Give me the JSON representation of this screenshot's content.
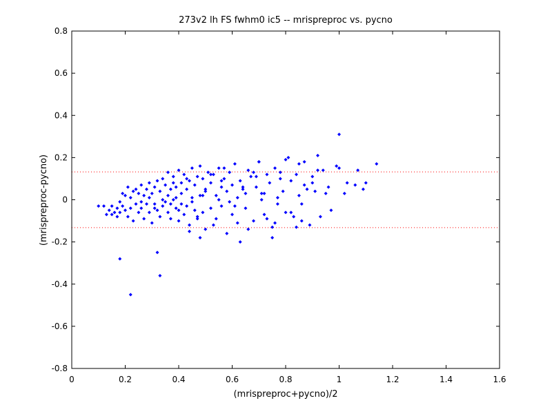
{
  "chart_data": {
    "type": "scatter",
    "title": "273v2 lh FS fwhm0 ic5 -- mrispreproc vs. pycno",
    "xlabel": "(mrispreproc+pycno)/2",
    "ylabel": "(mrispreproc-pycno)",
    "xlim": [
      0,
      1.6
    ],
    "ylim": [
      -0.8,
      0.8
    ],
    "xticks": [
      0,
      0.2,
      0.4,
      0.6,
      0.8,
      1,
      1.2,
      1.4,
      1.6
    ],
    "xtick_labels": [
      "0",
      "0.2",
      "0.4",
      "0.6",
      "0.8",
      "1",
      "1.2",
      "1.4",
      "1.6"
    ],
    "yticks": [
      -0.8,
      -0.6,
      -0.4,
      -0.2,
      0,
      0.2,
      0.4,
      0.6,
      0.8
    ],
    "ytick_labels": [
      "-0.8",
      "-0.6",
      "-0.4",
      "-0.2",
      "0",
      "0.2",
      "0.4",
      "0.6",
      "0.8"
    ],
    "grid": false,
    "marker_color": "#0000ff",
    "reference_lines": {
      "y": [
        0.132,
        -0.132
      ],
      "color": "#ff0000",
      "style": "dotted"
    },
    "series": [
      {
        "x": [
          0.1,
          0.12,
          0.13,
          0.14,
          0.15,
          0.15,
          0.16,
          0.17,
          0.17,
          0.18,
          0.18,
          0.19,
          0.19,
          0.2,
          0.2,
          0.21,
          0.21,
          0.22,
          0.22,
          0.23,
          0.23,
          0.24,
          0.24,
          0.25,
          0.25,
          0.26,
          0.26,
          0.27,
          0.27,
          0.28,
          0.28,
          0.29,
          0.29,
          0.3,
          0.3,
          0.31,
          0.31,
          0.32,
          0.32,
          0.33,
          0.33,
          0.34,
          0.34,
          0.35,
          0.35,
          0.36,
          0.36,
          0.37,
          0.37,
          0.38,
          0.38,
          0.39,
          0.39,
          0.4,
          0.4,
          0.41,
          0.41,
          0.42,
          0.42,
          0.43,
          0.43,
          0.44,
          0.44,
          0.45,
          0.45,
          0.46,
          0.46,
          0.47,
          0.47,
          0.48,
          0.48,
          0.49,
          0.49,
          0.5,
          0.5,
          0.51,
          0.52,
          0.52,
          0.53,
          0.54,
          0.54,
          0.55,
          0.56,
          0.56,
          0.57,
          0.58,
          0.58,
          0.59,
          0.6,
          0.6,
          0.61,
          0.62,
          0.62,
          0.63,
          0.64,
          0.65,
          0.66,
          0.67,
          0.68,
          0.69,
          0.7,
          0.71,
          0.72,
          0.73,
          0.74,
          0.75,
          0.76,
          0.77,
          0.78,
          0.79,
          0.8,
          0.81,
          0.82,
          0.83,
          0.84,
          0.85,
          0.86,
          0.87,
          0.88,
          0.89,
          0.9,
          0.91,
          0.92,
          0.93,
          0.94,
          0.96,
          0.97,
          0.99,
          1.0,
          1.02,
          1.03,
          1.06,
          1.07,
          1.09,
          1.1,
          1.14,
          0.18,
          0.22,
          0.32,
          0.33,
          0.36,
          0.38,
          0.4,
          0.43,
          0.47,
          0.5,
          0.53,
          0.56,
          0.61,
          0.64,
          0.66,
          0.69,
          0.72,
          0.76,
          0.78,
          0.82,
          0.85,
          0.86,
          0.9,
          0.92,
          0.95,
          0.44,
          0.48,
          0.52,
          0.57,
          0.63,
          0.68,
          0.7,
          0.73,
          0.75,
          0.8,
          0.84,
          0.87,
          1.0,
          0.26,
          0.29,
          0.31,
          0.34,
          0.37,
          0.39,
          0.41,
          0.45,
          0.49,
          0.55,
          0.59,
          0.65,
          0.71,
          0.77
        ],
        "y": [
          -0.03,
          -0.03,
          -0.07,
          -0.05,
          -0.03,
          -0.07,
          -0.06,
          -0.04,
          -0.08,
          -0.01,
          -0.06,
          0.03,
          -0.03,
          0.02,
          -0.05,
          0.06,
          -0.08,
          0.01,
          -0.04,
          0.04,
          -0.1,
          0.05,
          -0.02,
          0.03,
          -0.06,
          0.07,
          -0.04,
          0.02,
          -0.09,
          0.05,
          -0.02,
          0.08,
          -0.06,
          0.03,
          -0.11,
          0.06,
          -0.02,
          0.09,
          -0.05,
          0.04,
          -0.08,
          0.1,
          -0.03,
          0.07,
          -0.01,
          0.13,
          -0.06,
          0.05,
          -0.09,
          0.11,
          0.0,
          0.06,
          -0.04,
          0.14,
          -0.1,
          0.08,
          -0.02,
          0.12,
          -0.07,
          0.05,
          -0.03,
          0.09,
          -0.12,
          0.15,
          0.01,
          0.07,
          -0.05,
          0.11,
          -0.08,
          0.16,
          0.02,
          0.1,
          -0.06,
          0.04,
          -0.14,
          0.13,
          0.08,
          -0.04,
          0.12,
          0.02,
          -0.09,
          0.15,
          0.06,
          -0.03,
          0.1,
          -0.16,
          0.04,
          0.13,
          0.07,
          -0.07,
          0.17,
          0.01,
          -0.11,
          0.09,
          0.05,
          -0.04,
          0.14,
          0.11,
          -0.1,
          0.06,
          0.18,
          0.03,
          -0.07,
          0.12,
          0.08,
          -0.13,
          0.15,
          -0.02,
          0.1,
          0.04,
          -0.06,
          0.2,
          0.09,
          -0.08,
          0.12,
          0.02,
          -0.1,
          0.07,
          0.05,
          -0.12,
          0.11,
          0.04,
          0.21,
          -0.08,
          0.14,
          0.06,
          -0.05,
          0.16,
          0.31,
          0.03,
          0.08,
          0.07,
          0.14,
          0.05,
          0.08,
          0.17,
          -0.28,
          -0.45,
          -0.25,
          -0.36,
          0.02,
          0.08,
          -0.05,
          0.1,
          -0.09,
          0.05,
          -0.12,
          0.09,
          -0.03,
          0.06,
          -0.14,
          0.11,
          0.03,
          -0.11,
          0.13,
          -0.06,
          0.17,
          -0.02,
          0.08,
          0.14,
          0.03,
          -0.15,
          -0.18,
          0.12,
          0.15,
          -0.2,
          0.13,
          0.18,
          -0.09,
          -0.18,
          0.19,
          -0.13,
          0.18,
          0.15,
          -0.01,
          0.01,
          -0.04,
          0.0,
          -0.02,
          0.01,
          0.03,
          -0.01,
          0.02,
          0.0,
          -0.01,
          0.03,
          0.0,
          0.01
        ]
      }
    ]
  }
}
